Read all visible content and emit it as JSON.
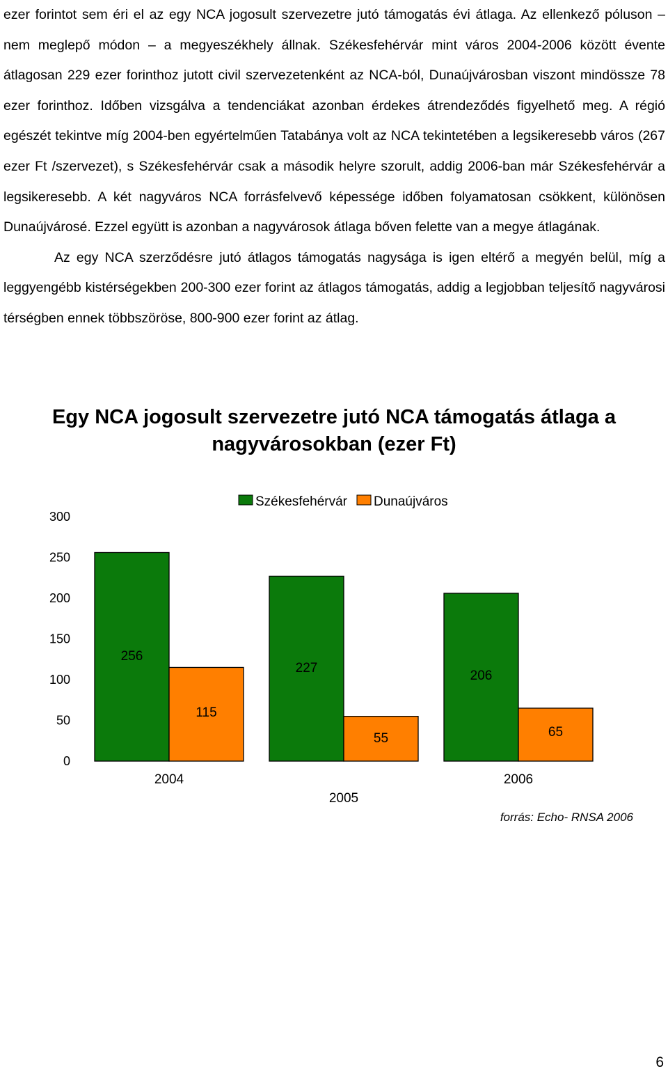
{
  "document": {
    "paragraphs": [
      "ezer forintot sem éri el az egy NCA jogosult szervezetre jutó támogatás évi átlaga. Az ellenkező póluson – nem meglepő módon – a megyeszékhely állnak. Székesfehérvár mint város 2004-2006 között évente átlagosan 229 ezer forinthoz jutott civil szervezetenként az NCA-ból, Dunaújvárosban viszont mindössze 78 ezer forinthoz. Időben vizsgálva a tendenciákat azonban érdekes átrendeződés figyelhető meg. A régió egészét tekintve míg 2004-ben egyértelműen Tatabánya volt az NCA tekintetében a legsikeresebb város (267 ezer Ft /szervezet), s Székesfehérvár csak a második helyre szorult, addig 2006-ban már Székesfehérvár a legsikeresebb. A két nagyváros NCA forrásfelvevő képessége időben folyamatosan csökkent, különösen Dunaújvárosé. Ezzel együtt is azonban a nagyvárosok átlaga bőven felette van a megye átlagának.",
      "Az egy NCA szerződésre jutó átlagos támogatás nagysága is igen eltérő a megyén belül, míg a leggyengébb kistérségekben 200-300 ezer forint az átlagos támogatás, addig a legjobban teljesítő nagyvárosi térségben ennek többszöröse, 800-900 ezer forint az átlag."
    ],
    "page_number": "6"
  },
  "chart_data": {
    "type": "bar",
    "title": "Egy NCA jogosult szervezetre jutó NCA támogatás átlaga a nagyvárosokban (ezer Ft)",
    "categories": [
      "2004",
      "2005",
      "2006"
    ],
    "series": [
      {
        "name": "Székesfehérvár",
        "values": [
          256,
          227,
          206
        ],
        "color": "#0b7a0b"
      },
      {
        "name": "Dunaújváros",
        "values": [
          115,
          55,
          65
        ],
        "color": "#ff7f00"
      }
    ],
    "y_ticks": [
      "0",
      "50",
      "100",
      "150",
      "200",
      "250",
      "300"
    ],
    "ylim": [
      0,
      300
    ],
    "legend_position": "top",
    "source": "forrás: Echo- RNSA 2006"
  }
}
